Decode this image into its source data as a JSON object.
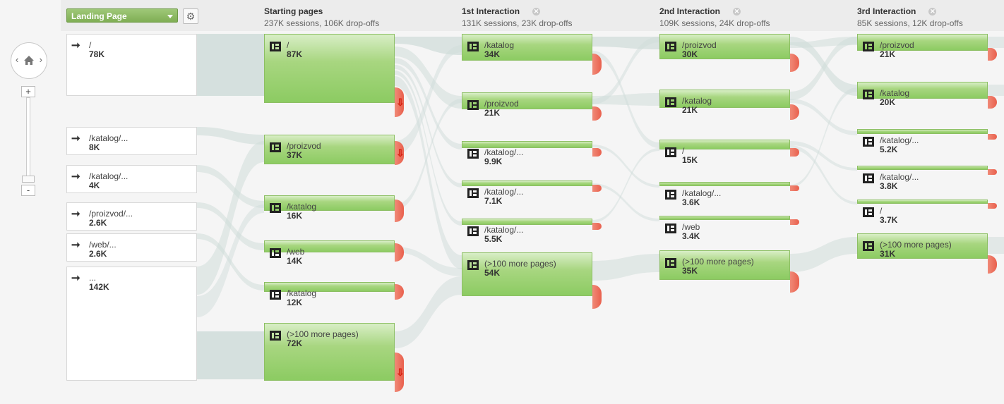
{
  "landing_select": {
    "label": "Landing Page"
  },
  "columns": [
    {
      "title": "Starting pages",
      "summary": "237K sessions, 106K drop-offs",
      "closable": false
    },
    {
      "title": "1st Interaction",
      "summary": "131K sessions, 23K drop-offs",
      "closable": true
    },
    {
      "title": "2nd Interaction",
      "summary": "109K sessions, 24K drop-offs",
      "closable": true
    },
    {
      "title": "3rd Interaction",
      "summary": "85K sessions, 12K drop-offs",
      "closable": true
    }
  ],
  "landing_nodes": [
    {
      "label": "/",
      "value": "78K"
    },
    {
      "label": "/katalog/...",
      "value": "8K"
    },
    {
      "label": "/katalog/...",
      "value": "4K"
    },
    {
      "label": "/proizvod/...",
      "value": "2.6K"
    },
    {
      "label": "/web/...",
      "value": "2.6K"
    },
    {
      "label": "...",
      "value": "142K"
    }
  ],
  "starting_pages": [
    {
      "label": "/",
      "value": "87K"
    },
    {
      "label": "/proizvod",
      "value": "37K"
    },
    {
      "label": "/katalog",
      "value": "16K"
    },
    {
      "label": "/web",
      "value": "14K"
    },
    {
      "label": "/katalog",
      "value": "12K"
    },
    {
      "label": "(>100 more pages)",
      "value": "72K"
    }
  ],
  "interaction_1": [
    {
      "label": "/katalog",
      "value": "34K"
    },
    {
      "label": "/proizvod",
      "value": "21K"
    },
    {
      "label": "/katalog/...",
      "value": "9.9K"
    },
    {
      "label": "/katalog/...",
      "value": "7.1K"
    },
    {
      "label": "/katalog/...",
      "value": "5.5K"
    },
    {
      "label": "(>100 more pages)",
      "value": "54K"
    }
  ],
  "interaction_2": [
    {
      "label": "/proizvod",
      "value": "30K"
    },
    {
      "label": "/katalog",
      "value": "21K"
    },
    {
      "label": "/",
      "value": "15K"
    },
    {
      "label": "/katalog/...",
      "value": "3.6K"
    },
    {
      "label": "/web",
      "value": "3.4K"
    },
    {
      "label": "(>100 more pages)",
      "value": "35K"
    }
  ],
  "interaction_3": [
    {
      "label": "/proizvod",
      "value": "21K"
    },
    {
      "label": "/katalog",
      "value": "20K"
    },
    {
      "label": "/katalog/...",
      "value": "5.2K"
    },
    {
      "label": "/katalog/...",
      "value": "3.8K"
    },
    {
      "label": "/",
      "value": "3.7K"
    },
    {
      "label": "(>100 more pages)",
      "value": "31K"
    }
  ],
  "colors": {
    "node_green": "#8ccb62",
    "dropoff_red": "#e9604d",
    "flow": "#cfdcd9"
  },
  "icons": {
    "home": "home-icon",
    "settings": "gear-icon",
    "entry": "arrow-entry-icon",
    "page": "table-icon",
    "close": "close-icon"
  }
}
